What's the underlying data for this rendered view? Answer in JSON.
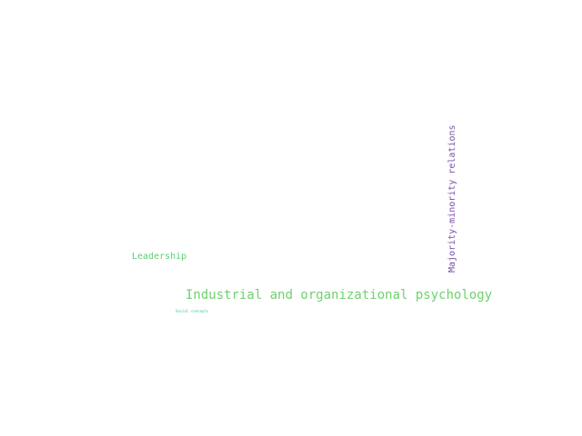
{
  "word_cloud": {
    "words": [
      {
        "text": "Industrial and organizational psychology",
        "color": "#6fd16f"
      },
      {
        "text": "Majority-minority relations",
        "color": "#7b4fa8"
      },
      {
        "text": "Leadership",
        "color": "#5ccf74"
      },
      {
        "text": "Social concepts",
        "color": "#44c79a"
      }
    ]
  }
}
